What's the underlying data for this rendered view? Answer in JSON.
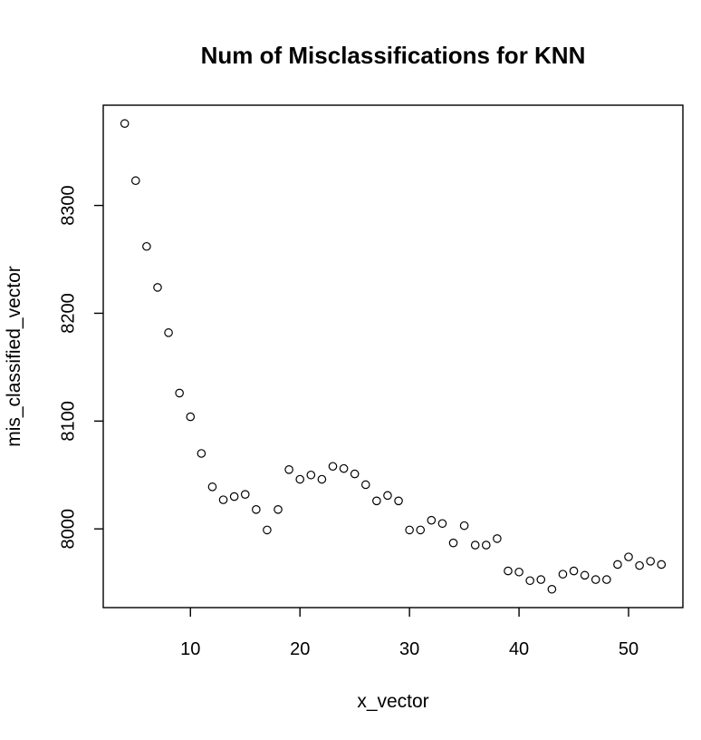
{
  "chart_data": {
    "type": "scatter",
    "title": "Num of Misclassifications for KNN",
    "xlabel": "x_vector",
    "ylabel": "mis_classified_vector",
    "xlim": [
      2.04,
      54.96
    ],
    "ylim": [
      7927,
      8393
    ],
    "xticks": [
      10,
      20,
      30,
      40,
      50
    ],
    "yticks": [
      8000,
      8100,
      8200,
      8300
    ],
    "grid": false,
    "legend": "none",
    "series": [
      {
        "x": [
          4,
          5,
          6,
          7,
          8,
          9,
          10,
          11,
          12,
          13,
          14,
          15,
          16,
          17,
          18,
          19,
          20,
          21,
          22,
          23,
          24,
          25,
          26,
          27,
          28,
          29,
          30,
          31,
          32,
          33,
          34,
          35,
          36,
          37,
          38,
          39,
          40,
          41,
          42,
          43,
          44,
          45,
          46,
          47,
          48,
          49,
          50,
          51,
          52,
          53
        ],
        "y": [
          8376,
          8323,
          8262,
          8224,
          8182,
          8126,
          8104,
          8070,
          8039,
          8027,
          8030,
          8032,
          8018,
          7999,
          8018,
          8055,
          8046,
          8050,
          8046,
          8058,
          8056,
          8051,
          8041,
          8026,
          8031,
          8026,
          7999,
          7999,
          8008,
          8005,
          7987,
          8003,
          7985,
          7985,
          7991,
          7961,
          7960,
          7952,
          7953,
          7944,
          7958,
          7961,
          7957,
          7953,
          7953,
          7967,
          7974,
          7966,
          7970,
          7967
        ]
      }
    ]
  }
}
